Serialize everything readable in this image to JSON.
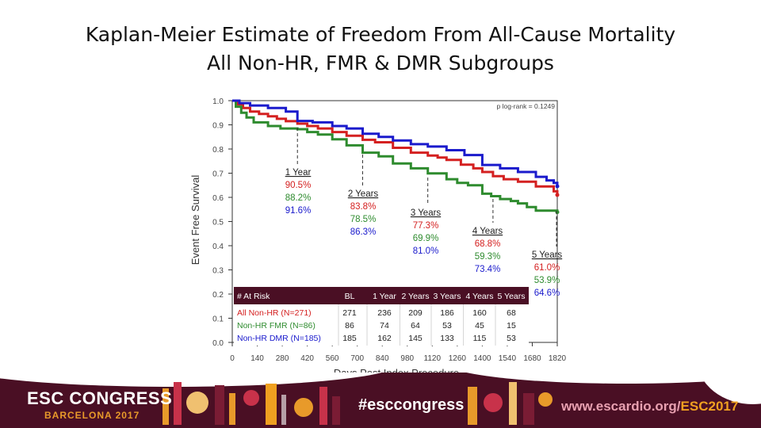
{
  "title": {
    "line1": "Kaplan-Meier Estimate of Freedom From All-Cause Mortality",
    "line2": "All Non-HR, FMR & DMR Subgroups"
  },
  "chart_data": {
    "type": "line",
    "step": true,
    "xlabel": "Days Post Index Procedure",
    "ylabel": "Event Free Survival",
    "xlim": [
      0,
      1820
    ],
    "ylim": [
      0.0,
      1.0
    ],
    "x_ticks": [
      "0",
      "140",
      "280",
      "420",
      "560",
      "700",
      "840",
      "980",
      "1120",
      "1260",
      "1400",
      "1540",
      "1680",
      "1820"
    ],
    "y_ticks": [
      "0.0",
      "0.1",
      "0.2",
      "0.3",
      "0.4",
      "0.5",
      "0.6",
      "0.7",
      "0.8",
      "0.9",
      "1.0"
    ],
    "pvalue_label": "p log-rank = 0.1249",
    "series": [
      {
        "name": "All Non-HR (N=271)",
        "color": "#d42020",
        "x": [
          0,
          30,
          60,
          100,
          150,
          200,
          250,
          300,
          365,
          420,
          480,
          560,
          640,
          730,
          800,
          900,
          1000,
          1095,
          1150,
          1200,
          1280,
          1350,
          1400,
          1460,
          1520,
          1600,
          1700,
          1800,
          1820
        ],
        "y": [
          1.0,
          0.985,
          0.97,
          0.955,
          0.945,
          0.935,
          0.925,
          0.915,
          0.905,
          0.895,
          0.885,
          0.87,
          0.855,
          0.838,
          0.828,
          0.805,
          0.785,
          0.773,
          0.765,
          0.755,
          0.735,
          0.72,
          0.705,
          0.688,
          0.675,
          0.665,
          0.645,
          0.625,
          0.61
        ]
      },
      {
        "name": "Non-HR FMR (N=86)",
        "color": "#2e8b2e",
        "x": [
          0,
          20,
          50,
          80,
          120,
          200,
          270,
          365,
          420,
          480,
          560,
          640,
          730,
          820,
          900,
          1000,
          1095,
          1200,
          1260,
          1320,
          1400,
          1450,
          1500,
          1560,
          1600,
          1650,
          1700,
          1820
        ],
        "y": [
          1.0,
          0.975,
          0.95,
          0.93,
          0.91,
          0.895,
          0.885,
          0.882,
          0.87,
          0.86,
          0.84,
          0.815,
          0.785,
          0.77,
          0.74,
          0.72,
          0.699,
          0.675,
          0.66,
          0.65,
          0.615,
          0.605,
          0.593,
          0.585,
          0.575,
          0.56,
          0.545,
          0.539
        ]
      },
      {
        "name": "Non-HR DMR (N=185)",
        "color": "#1a1acc",
        "x": [
          0,
          40,
          100,
          200,
          300,
          365,
          450,
          560,
          640,
          730,
          820,
          900,
          1000,
          1095,
          1200,
          1300,
          1400,
          1500,
          1600,
          1700,
          1760,
          1800,
          1820
        ],
        "y": [
          1.0,
          0.99,
          0.98,
          0.97,
          0.955,
          0.916,
          0.91,
          0.895,
          0.885,
          0.863,
          0.85,
          0.835,
          0.82,
          0.81,
          0.795,
          0.775,
          0.734,
          0.72,
          0.705,
          0.685,
          0.67,
          0.66,
          0.646
        ]
      }
    ],
    "annotations": [
      {
        "label": "1 Year",
        "day": 365,
        "values": [
          "90.5%",
          "88.2%",
          "91.6%"
        ]
      },
      {
        "label": "2 Years",
        "day": 730,
        "values": [
          "83.8%",
          "78.5%",
          "86.3%"
        ]
      },
      {
        "label": "3 Years",
        "day": 1095,
        "values": [
          "77.3%",
          "69.9%",
          "81.0%"
        ]
      },
      {
        "label": "4 Years",
        "day": 1460,
        "values": [
          "68.8%",
          "59.3%",
          "73.4%"
        ]
      },
      {
        "label": "5 Years",
        "day": 1820,
        "values": [
          "61.0%",
          "53.9%",
          "64.6%"
        ]
      }
    ],
    "at_risk": {
      "header": [
        "# At Risk",
        "BL",
        "1 Year",
        "2 Years",
        "3 Years",
        "4 Years",
        "5 Years"
      ],
      "rows": [
        {
          "label": "All Non-HR (N=271)",
          "values": [
            "271",
            "236",
            "209",
            "186",
            "160",
            "68"
          ]
        },
        {
          "label": "Non-HR FMR (N=86)",
          "values": [
            "86",
            "74",
            "64",
            "53",
            "45",
            "15"
          ]
        },
        {
          "label": "Non-HR DMR (N=185)",
          "values": [
            "185",
            "162",
            "145",
            "133",
            "115",
            "53"
          ]
        }
      ]
    }
  },
  "footer": {
    "congress_name": "ESC CONGRESS",
    "congress_place": "BARCELONA",
    "congress_year": "2017",
    "hashtag": "#esccongress",
    "url_main": "www.escardio.org/",
    "url_accent": "ESC2017"
  },
  "colors": {
    "red": "#d42020",
    "green": "#2e8b2e",
    "blue": "#1a1acc",
    "table_header": "#4a0f24",
    "footer_bg": "#4a0f24",
    "accent_orange": "#e89a2a"
  }
}
